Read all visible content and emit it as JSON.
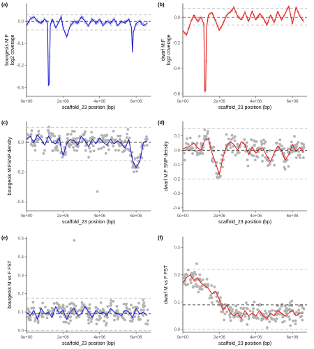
{
  "colors": {
    "blue": "#1f1fd6",
    "red": "#e22020",
    "points": "#b3b3b3",
    "dashed": "#bdbdbd",
    "zero": "#333333"
  },
  "chart_data": [
    {
      "type": "line",
      "panel_label": "(a)",
      "xlabel": "scaffold_23 position (bp)",
      "ylabel": "bourgeois M:F log2 coverage",
      "xlim": [
        0,
        6800000
      ],
      "ylim": [
        -0.34,
        0.08
      ],
      "xticks": [
        "0e+00",
        "2e+06",
        "4e+06",
        "6e+06"
      ],
      "yticks": [
        "0.0",
        "-0.1",
        "-0.2",
        "-0.3"
      ],
      "dashed_lines": [
        0.03,
        -0.04
      ],
      "zero_line": 0,
      "series": [
        {
          "color": "blue",
          "points": "yes",
          "x": [
            0,
            200000,
            400000,
            600000,
            800000,
            1000000,
            1150000,
            1200000,
            1250000,
            1300000,
            1400000,
            1600000,
            1800000,
            1900000,
            2000000,
            2200000,
            2400000,
            2600000,
            2800000,
            3000000,
            3200000,
            3400000,
            3600000,
            3800000,
            4000000,
            4200000,
            4400000,
            4600000,
            4800000,
            5000000,
            5200000,
            5400000,
            5600000,
            5750000,
            5800000,
            5850000,
            6000000,
            6200000,
            6400000,
            6600000
          ],
          "y": [
            -0.02,
            0.01,
            0.02,
            0.0,
            -0.01,
            0.01,
            -0.01,
            -0.29,
            -0.28,
            -0.02,
            0.01,
            -0.03,
            0.0,
            0.02,
            -0.03,
            -0.07,
            -0.02,
            0.0,
            -0.01,
            0.02,
            0.0,
            -0.02,
            0.01,
            -0.01,
            0.01,
            -0.02,
            0.0,
            -0.01,
            0.01,
            -0.02,
            0.0,
            -0.01,
            0.01,
            -0.03,
            -0.14,
            -0.05,
            -0.01,
            0.0,
            -0.02,
            -0.01
          ]
        }
      ]
    },
    {
      "type": "line",
      "panel_label": "(b)",
      "xlabel": "scaffold_23 position (bp)",
      "ylabel": "dwarf M:F log2 coverage",
      "xlim": [
        0,
        6800000
      ],
      "ylim": [
        -0.62,
        0.11
      ],
      "xticks": [
        "0e+00",
        "2e+06",
        "4e+06",
        "6e+06"
      ],
      "yticks": [
        "0.0",
        "-0.2",
        "-0.4",
        "-0.6"
      ],
      "dashed_lines": [
        0.07,
        -0.06
      ],
      "zero_line": 0,
      "series": [
        {
          "color": "red",
          "points": "yes",
          "x": [
            0,
            200000,
            400000,
            600000,
            800000,
            1000000,
            1150000,
            1200000,
            1250000,
            1300000,
            1400000,
            1600000,
            1800000,
            2000000,
            2200000,
            2400000,
            2600000,
            2800000,
            3000000,
            3200000,
            3400000,
            3600000,
            3800000,
            4000000,
            4200000,
            4400000,
            4600000,
            4800000,
            5000000,
            5200000,
            5400000,
            5600000,
            5800000,
            6000000,
            6200000,
            6400000,
            6600000
          ],
          "y": [
            -0.1,
            -0.14,
            -0.05,
            0.02,
            -0.03,
            0.0,
            -0.05,
            -0.58,
            -0.57,
            -0.08,
            0.02,
            0.04,
            -0.03,
            -0.1,
            -0.05,
            0.02,
            0.04,
            0.08,
            0.01,
            -0.02,
            0.04,
            -0.03,
            0.05,
            -0.02,
            0.03,
            0.0,
            -0.06,
            0.02,
            -0.04,
            0.05,
            -0.02,
            0.03,
            0.09,
            -0.05,
            0.08,
            0.01,
            -0.03
          ]
        }
      ]
    },
    {
      "type": "scatter",
      "panel_label": "(c)",
      "xlabel": "scaffold_23 position (bp)",
      "ylabel": "bourgeois M:FSNP density",
      "xlim": [
        0,
        6800000
      ],
      "ylim": [
        -0.46,
        0.14
      ],
      "xticks": [
        "0e+00",
        "2e+06",
        "4e+06",
        "6e+06"
      ],
      "yticks": [
        "0.0",
        "-0.2",
        "-0.4"
      ],
      "dashed_lines": [
        0.1,
        -0.12
      ],
      "zero_line": 0,
      "series": [
        {
          "color": "blue",
          "points": "yes",
          "x": [
            0,
            200000,
            400000,
            600000,
            800000,
            1000000,
            1200000,
            1400000,
            1600000,
            1800000,
            1900000,
            2000000,
            2200000,
            2400000,
            2600000,
            2800000,
            3000000,
            3200000,
            3400000,
            3600000,
            3800000,
            4000000,
            4200000,
            4400000,
            4600000,
            4800000,
            5000000,
            5200000,
            5400000,
            5600000,
            5800000,
            6000000,
            6200000,
            6400000,
            6600000
          ],
          "y": [
            0.02,
            0.04,
            0.0,
            0.05,
            0.02,
            -0.02,
            0.04,
            0.0,
            -0.01,
            0.03,
            -0.04,
            -0.09,
            -0.01,
            0.02,
            0.01,
            -0.02,
            0.04,
            0.01,
            -0.03,
            0.02,
            -0.01,
            0.03,
            0.0,
            -0.02,
            0.02,
            -0.01,
            0.01,
            -0.01,
            -0.04,
            0.02,
            -0.12,
            -0.17,
            -0.13,
            0.0,
            0.01
          ]
        }
      ]
    },
    {
      "type": "scatter",
      "panel_label": "(d)",
      "xlabel": "scaffold_23 position (bp)",
      "ylabel": "dwarf M:F SNP density",
      "xlim": [
        0,
        6800000
      ],
      "ylim": [
        -0.42,
        0.2
      ],
      "xticks": [
        "0e+00",
        "2e+06",
        "4e+06",
        "6e+06"
      ],
      "yticks": [
        "0.1",
        "0.0",
        "-0.1",
        "-0.2",
        "-0.3",
        "-0.4"
      ],
      "dashed_lines": [
        0.15,
        -0.2
      ],
      "zero_line": 0,
      "series": [
        {
          "color": "red",
          "points": "yes",
          "x": [
            0,
            200000,
            400000,
            600000,
            800000,
            1000000,
            1200000,
            1400000,
            1600000,
            1800000,
            2000000,
            2200000,
            2400000,
            2600000,
            2800000,
            3000000,
            3200000,
            3400000,
            3600000,
            3800000,
            4000000,
            4200000,
            4400000,
            4600000,
            4800000,
            5000000,
            5200000,
            5400000,
            5600000,
            5800000,
            6000000,
            6200000,
            6400000,
            6600000
          ],
          "y": [
            0.01,
            0.02,
            0.03,
            0.05,
            0.02,
            0.0,
            0.07,
            0.08,
            -0.02,
            -0.09,
            -0.17,
            -0.05,
            0.03,
            0.06,
            0.04,
            0.0,
            0.06,
            0.04,
            -0.03,
            0.02,
            -0.02,
            0.01,
            0.01,
            -0.04,
            -0.08,
            -0.02,
            0.03,
            0.0,
            -0.07,
            -0.03,
            0.04,
            -0.01,
            0.02,
            -0.01
          ]
        }
      ]
    },
    {
      "type": "scatter",
      "panel_label": "(e)",
      "xlabel": "scaffold_23 position (bp)",
      "ylabel": "bourgeois M vs F FST",
      "xlim": [
        0,
        6800000
      ],
      "ylim": [
        -0.01,
        0.51
      ],
      "xticks": [
        "0e+00",
        "2e+06",
        "4e+06",
        "6e+06"
      ],
      "yticks": [
        "0.0",
        "0.1",
        "0.2",
        "0.3",
        "0.4",
        "0.5"
      ],
      "dashed_lines": [
        0.175,
        0.0
      ],
      "zero_line": 0.09,
      "series": [
        {
          "color": "blue",
          "points": "yes",
          "x": [
            0,
            200000,
            400000,
            600000,
            800000,
            1000000,
            1200000,
            1400000,
            1600000,
            1800000,
            2000000,
            2200000,
            2400000,
            2600000,
            2800000,
            3000000,
            3200000,
            3400000,
            3600000,
            3800000,
            4000000,
            4200000,
            4400000,
            4600000,
            4800000,
            5000000,
            5200000,
            5400000,
            5600000,
            5800000,
            6000000,
            6200000,
            6400000,
            6600000
          ],
          "y": [
            0.1,
            0.08,
            0.11,
            0.06,
            0.12,
            0.09,
            0.1,
            0.07,
            0.13,
            0.09,
            0.11,
            0.06,
            0.1,
            0.12,
            0.08,
            0.09,
            0.13,
            0.1,
            0.07,
            0.11,
            0.09,
            0.1,
            0.08,
            0.12,
            0.1,
            0.09,
            0.08,
            0.11,
            0.1,
            0.07,
            0.12,
            0.09,
            0.1,
            0.08
          ]
        }
      ]
    },
    {
      "type": "scatter",
      "panel_label": "(f)",
      "xlabel": "scaffold_23 position (bp)",
      "ylabel": "dwarf M vs F FST",
      "xlim": [
        0,
        6800000
      ],
      "ylim": [
        -0.01,
        0.34
      ],
      "xticks": [
        "0e+00",
        "2e+06",
        "4e+06",
        "6e+06"
      ],
      "yticks": [
        "0.0",
        "0.1",
        "0.2",
        "0.3"
      ],
      "dashed_lines": [
        0.22,
        0.0
      ],
      "zero_line": 0.09,
      "series": [
        {
          "color": "red",
          "points": "yes",
          "x": [
            0,
            200000,
            400000,
            600000,
            800000,
            1000000,
            1200000,
            1400000,
            1600000,
            1800000,
            2000000,
            2200000,
            2400000,
            2600000,
            2800000,
            3000000,
            3200000,
            3400000,
            3600000,
            3800000,
            4000000,
            4200000,
            4400000,
            4600000,
            4800000,
            5000000,
            5200000,
            5400000,
            5600000,
            5800000,
            6000000,
            6200000,
            6400000,
            6600000
          ],
          "y": [
            0.17,
            0.19,
            0.2,
            0.18,
            0.19,
            0.17,
            0.16,
            0.15,
            0.13,
            0.14,
            0.11,
            0.07,
            0.09,
            0.06,
            0.05,
            0.06,
            0.04,
            0.07,
            0.05,
            0.06,
            0.05,
            0.07,
            0.05,
            0.04,
            0.06,
            0.05,
            0.07,
            0.06,
            0.05,
            0.06,
            0.07,
            0.05,
            0.06,
            0.06
          ]
        }
      ]
    }
  ]
}
